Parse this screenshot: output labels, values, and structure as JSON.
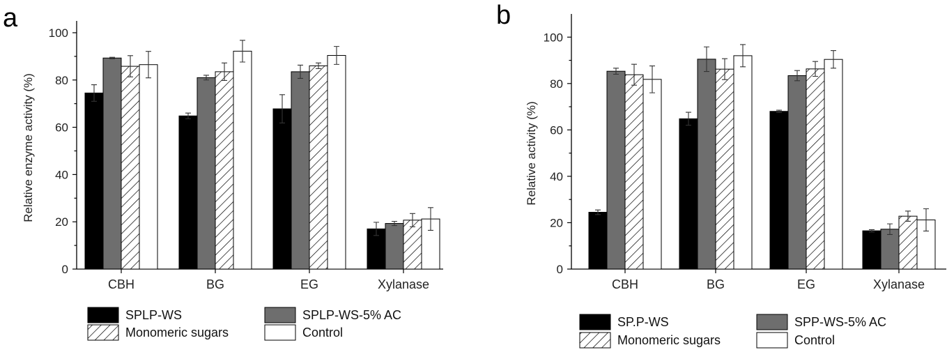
{
  "colors": {
    "SPLP-WS": "#000000",
    "SPLP-WS-5% AC": "#6e6e6e",
    "Monomeric sugars": "hatch",
    "Control": "#ffffff"
  },
  "chart_data": [
    {
      "panel_label": "a",
      "type": "bar",
      "ylabel": "Relative enzyme activity (%)",
      "xlabel": "",
      "ylim": [
        0,
        105
      ],
      "yticks": [
        0,
        20,
        40,
        60,
        80,
        100
      ],
      "categories": [
        "CBH",
        "BG",
        "EG",
        "Xylanase"
      ],
      "series": [
        {
          "name": "SPLP-WS",
          "fill": "solid-black",
          "values": [
            74.5,
            64.8,
            67.8,
            17.0
          ],
          "errors": [
            3.5,
            1.2,
            6.0,
            2.8
          ]
        },
        {
          "name": "SPLP-WS-5% AC",
          "fill": "solid-gray",
          "values": [
            89.3,
            81.0,
            83.5,
            19.3
          ],
          "errors": [
            0.3,
            1.0,
            2.8,
            0.9
          ]
        },
        {
          "name": "Monomeric sugars",
          "fill": "hatch",
          "values": [
            85.8,
            83.5,
            86.0,
            20.7
          ],
          "errors": [
            4.5,
            3.7,
            1.2,
            2.8
          ]
        },
        {
          "name": "Control",
          "fill": "white",
          "values": [
            86.5,
            92.2,
            90.4,
            21.2
          ],
          "errors": [
            5.6,
            4.6,
            3.8,
            4.8
          ]
        }
      ],
      "legend": {
        "position": "bottom",
        "columns": 2
      }
    },
    {
      "panel_label": "b",
      "type": "bar",
      "ylabel": "Relative activity (%)",
      "xlabel": "",
      "ylim": [
        0,
        110
      ],
      "yticks": [
        0,
        20,
        40,
        60,
        80,
        100
      ],
      "categories": [
        "CBH",
        "BG",
        "EG",
        "Xylanase"
      ],
      "series": [
        {
          "name": "SP.P-WS",
          "fill": "solid-black",
          "values": [
            24.5,
            64.8,
            68.0,
            16.5
          ],
          "errors": [
            1.0,
            2.8,
            0.5,
            0.5
          ]
        },
        {
          "name": "SPP-WS-5% AC",
          "fill": "solid-gray",
          "values": [
            85.3,
            90.5,
            83.4,
            17.2
          ],
          "errors": [
            1.3,
            5.3,
            2.2,
            2.3
          ]
        },
        {
          "name": "Monomeric sugars",
          "fill": "hatch",
          "values": [
            83.8,
            86.2,
            86.3,
            22.8
          ],
          "errors": [
            4.5,
            4.5,
            3.2,
            2.2
          ]
        },
        {
          "name": "Control",
          "fill": "white",
          "values": [
            81.8,
            92.0,
            90.4,
            21.2
          ],
          "errors": [
            5.8,
            4.8,
            3.8,
            4.8
          ]
        }
      ],
      "legend": {
        "position": "bottom",
        "columns": 2
      }
    }
  ]
}
